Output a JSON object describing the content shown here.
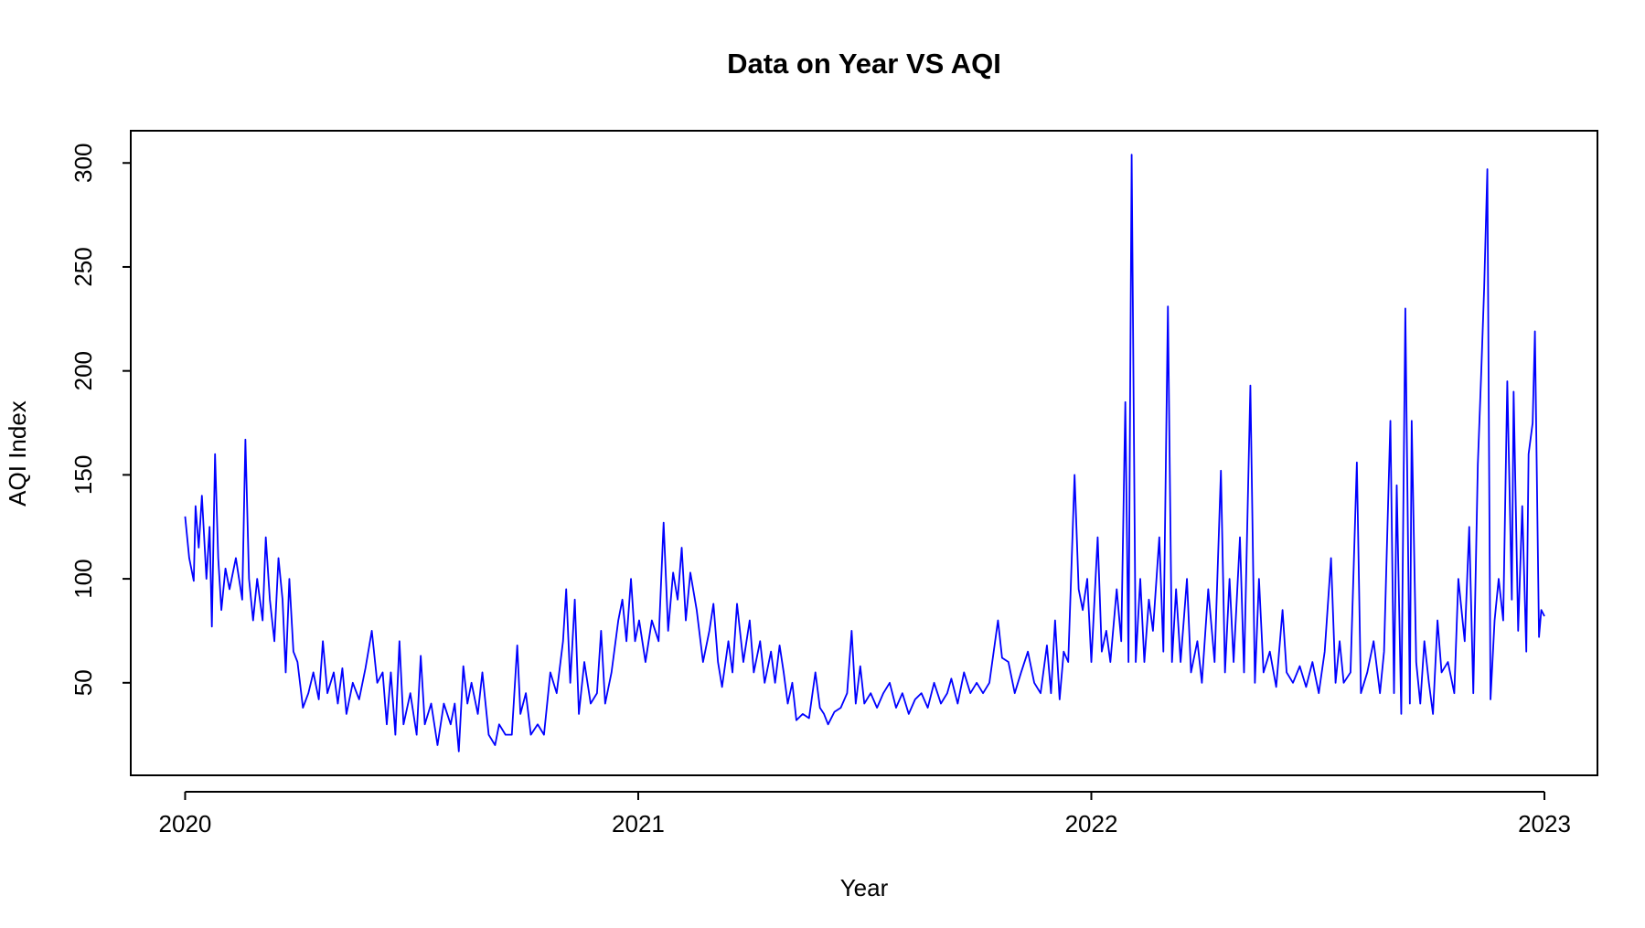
{
  "chart_data": {
    "type": "line",
    "title": "Data on Year VS AQI",
    "xlabel": "Year",
    "ylabel": "AQI Index",
    "color": "#0000ff",
    "xlim": [
      2019.88,
      2023.117
    ],
    "ylim": [
      5.5,
      315.5
    ],
    "xticks": [
      2020,
      2021,
      2022,
      2023
    ],
    "yticks": [
      50,
      100,
      150,
      200,
      250,
      300
    ],
    "x": [
      2020.0,
      2020.009,
      2020.019,
      2020.023,
      2020.03,
      2020.037,
      2020.047,
      2020.054,
      2020.059,
      2020.066,
      2020.073,
      2020.08,
      2020.089,
      2020.098,
      2020.112,
      2020.126,
      2020.133,
      2020.141,
      2020.15,
      2020.159,
      2020.171,
      2020.178,
      2020.187,
      2020.197,
      2020.206,
      2020.215,
      2020.222,
      2020.23,
      2020.239,
      2020.248,
      2020.26,
      2020.272,
      2020.283,
      2020.295,
      2020.304,
      2020.314,
      2020.328,
      2020.337,
      2020.347,
      2020.356,
      2020.37,
      2020.384,
      2020.398,
      2020.412,
      2020.424,
      2020.436,
      2020.445,
      2020.454,
      2020.464,
      2020.473,
      2020.482,
      2020.497,
      2020.511,
      2020.52,
      2020.529,
      2020.543,
      2020.557,
      2020.571,
      2020.586,
      2020.595,
      2020.604,
      2020.614,
      2020.623,
      2020.632,
      2020.646,
      2020.656,
      2020.67,
      2020.684,
      2020.693,
      2020.707,
      2020.721,
      2020.733,
      2020.74,
      2020.752,
      2020.763,
      2020.778,
      2020.792,
      2020.806,
      2020.82,
      2020.834,
      2020.841,
      2020.85,
      2020.86,
      2020.869,
      2020.881,
      2020.895,
      2020.909,
      2020.918,
      2020.927,
      2020.941,
      2020.956,
      2020.965,
      2020.974,
      2020.984,
      2020.993,
      2021.002,
      2021.016,
      2021.03,
      2021.045,
      2021.056,
      2021.066,
      2021.077,
      2021.087,
      2021.096,
      2021.105,
      2021.115,
      2021.129,
      2021.143,
      2021.157,
      2021.166,
      2021.176,
      2021.185,
      2021.199,
      2021.208,
      2021.218,
      2021.232,
      2021.246,
      2021.255,
      2021.269,
      2021.279,
      2021.293,
      2021.302,
      2021.312,
      2021.321,
      2021.33,
      2021.34,
      2021.349,
      2021.363,
      2021.377,
      2021.391,
      2021.401,
      2021.41,
      2021.419,
      2021.433,
      2021.447,
      2021.461,
      2021.471,
      2021.48,
      2021.49,
      2021.499,
      2021.513,
      2021.527,
      2021.541,
      2021.555,
      2021.569,
      2021.583,
      2021.597,
      2021.611,
      2021.625,
      2021.639,
      2021.653,
      2021.668,
      2021.682,
      2021.691,
      2021.705,
      2021.719,
      2021.733,
      2021.747,
      2021.761,
      2021.775,
      2021.794,
      2021.803,
      2021.817,
      2021.831,
      2021.845,
      2021.86,
      2021.874,
      2021.888,
      2021.902,
      2021.911,
      2021.92,
      2021.93,
      2021.939,
      2021.949,
      2021.963,
      2021.972,
      2021.981,
      2021.991,
      2022.0,
      2022.014,
      2022.023,
      2022.033,
      2022.042,
      2022.056,
      2022.066,
      2022.075,
      2022.082,
      2022.089,
      2022.098,
      2022.108,
      2022.117,
      2022.127,
      2022.136,
      2022.15,
      2022.159,
      2022.169,
      2022.178,
      2022.187,
      2022.197,
      2022.211,
      2022.22,
      2022.234,
      2022.244,
      2022.258,
      2022.272,
      2022.286,
      2022.295,
      2022.305,
      2022.314,
      2022.328,
      2022.337,
      2022.351,
      2022.361,
      2022.37,
      2022.38,
      2022.394,
      2022.408,
      2022.422,
      2022.431,
      2022.445,
      2022.46,
      2022.474,
      2022.488,
      2022.502,
      2022.515,
      2022.529,
      2022.539,
      2022.548,
      2022.557,
      2022.572,
      2022.586,
      2022.595,
      2022.609,
      2022.623,
      2022.637,
      2022.646,
      2022.66,
      2022.668,
      2022.674,
      2022.684,
      2022.693,
      2022.703,
      2022.707,
      2022.717,
      2022.726,
      2022.735,
      2022.745,
      2022.754,
      2022.764,
      2022.773,
      2022.787,
      2022.801,
      2022.81,
      2022.824,
      2022.834,
      2022.843,
      2022.853,
      2022.86,
      2022.867,
      2022.874,
      2022.881,
      2022.89,
      2022.899,
      2022.909,
      2022.918,
      2022.928,
      2022.932,
      2022.942,
      2022.951,
      2022.96,
      2022.965,
      2022.974,
      2022.979,
      2022.988,
      2022.993,
      2023.0
    ],
    "values": [
      130,
      110,
      99,
      135,
      115,
      140,
      100,
      125,
      77,
      160,
      110,
      85,
      105,
      95,
      110,
      90,
      167,
      100,
      80,
      100,
      80,
      120,
      90,
      70,
      110,
      90,
      55,
      100,
      65,
      60,
      38,
      45,
      55,
      42,
      70,
      45,
      55,
      40,
      57,
      35,
      50,
      42,
      57,
      75,
      50,
      55,
      30,
      55,
      25,
      70,
      30,
      45,
      25,
      63,
      30,
      40,
      20,
      40,
      30,
      40,
      17,
      58,
      40,
      50,
      35,
      55,
      25,
      20,
      30,
      25,
      25,
      68,
      35,
      45,
      25,
      30,
      25,
      55,
      45,
      70,
      95,
      50,
      90,
      35,
      60,
      40,
      45,
      75,
      40,
      55,
      80,
      90,
      70,
      100,
      70,
      80,
      60,
      80,
      70,
      127,
      75,
      103,
      90,
      115,
      80,
      103,
      85,
      60,
      75,
      88,
      60,
      48,
      70,
      55,
      88,
      60,
      80,
      55,
      70,
      50,
      65,
      50,
      68,
      55,
      40,
      50,
      32,
      35,
      33,
      55,
      38,
      35,
      30,
      36,
      38,
      45,
      75,
      40,
      58,
      40,
      45,
      38,
      45,
      50,
      38,
      45,
      35,
      42,
      45,
      38,
      50,
      40,
      45,
      52,
      40,
      55,
      45,
      50,
      45,
      50,
      80,
      62,
      60,
      45,
      55,
      65,
      50,
      45,
      68,
      45,
      80,
      42,
      65,
      60,
      150,
      95,
      85,
      100,
      60,
      120,
      65,
      75,
      60,
      95,
      70,
      185,
      60,
      304,
      60,
      100,
      60,
      90,
      75,
      120,
      65,
      231,
      60,
      95,
      60,
      100,
      55,
      70,
      50,
      95,
      60,
      152,
      55,
      100,
      60,
      120,
      55,
      193,
      50,
      100,
      55,
      65,
      48,
      85,
      55,
      50,
      58,
      48,
      60,
      45,
      65,
      110,
      50,
      70,
      50,
      55,
      156,
      45,
      55,
      70,
      45,
      65,
      176,
      45,
      145,
      35,
      230,
      40,
      176,
      60,
      40,
      70,
      50,
      35,
      80,
      55,
      60,
      45,
      100,
      70,
      125,
      45,
      155,
      196,
      240,
      297,
      42,
      80,
      100,
      80,
      195,
      90,
      190,
      75,
      135,
      65,
      160,
      175,
      219,
      72,
      85,
      82
    ]
  }
}
